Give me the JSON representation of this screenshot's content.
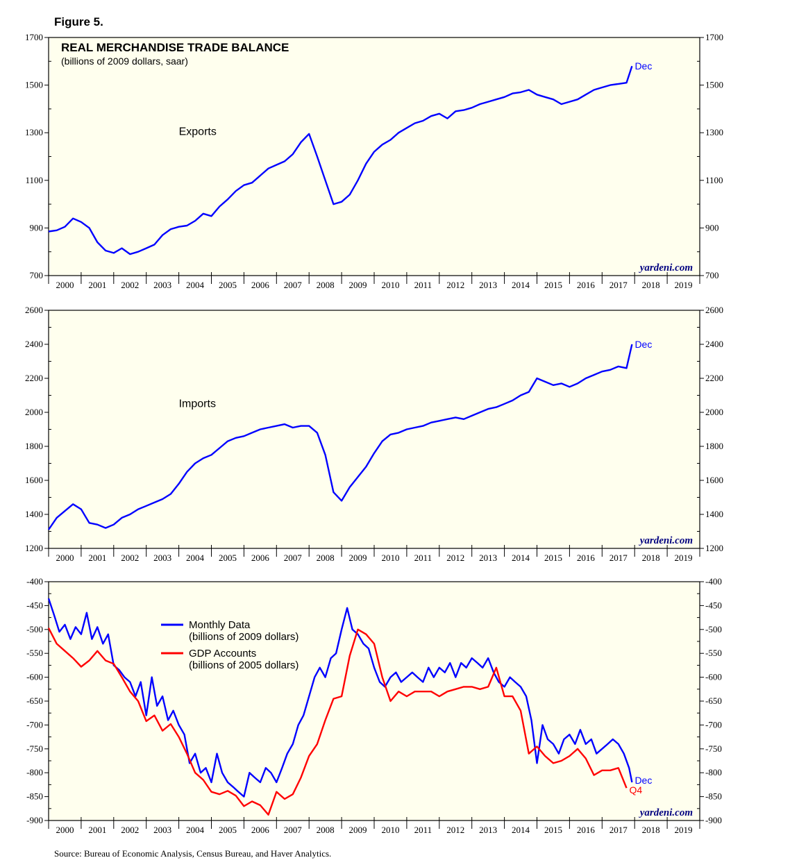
{
  "figure_label": "Figure 5.",
  "source": "Source: Bureau of Economic Analysis, Census Bureau, and Haver Analytics.",
  "colors": {
    "panel_bg": "#ffffee",
    "blue": "#0000ff",
    "red": "#ff0000",
    "watermark": "#000080"
  },
  "chart_data": [
    {
      "type": "line",
      "title": "REAL MERCHANDISE TRADE BALANCE",
      "subtitle": "(billions of 2009 dollars, saar)",
      "watermark": "yardeni.com",
      "ylim": [
        700,
        1700
      ],
      "yticks": [
        700,
        900,
        1100,
        1300,
        1500,
        1700
      ],
      "xlim": [
        2000,
        2020
      ],
      "xtick_labels": [
        "2000",
        "2001",
        "2002",
        "2003",
        "2004",
        "2005",
        "2006",
        "2007",
        "2008",
        "2009",
        "2010",
        "2011",
        "2012",
        "2013",
        "2014",
        "2015",
        "2016",
        "2017",
        "2018",
        "2019"
      ],
      "annotations": [
        {
          "text": "Exports",
          "x": 2004,
          "y": 1290
        }
      ],
      "series": [
        {
          "label": "Exports",
          "color": "#0000ff",
          "end_label": "Dec",
          "x": [
            2000.0,
            2000.25,
            2000.5,
            2000.75,
            2001.0,
            2001.25,
            2001.5,
            2001.75,
            2002.0,
            2002.25,
            2002.5,
            2002.75,
            2003.0,
            2003.25,
            2003.5,
            2003.75,
            2004.0,
            2004.25,
            2004.5,
            2004.75,
            2005.0,
            2005.25,
            2005.5,
            2005.75,
            2006.0,
            2006.25,
            2006.5,
            2006.75,
            2007.0,
            2007.25,
            2007.5,
            2007.75,
            2008.0,
            2008.25,
            2008.5,
            2008.75,
            2009.0,
            2009.25,
            2009.5,
            2009.75,
            2010.0,
            2010.25,
            2010.5,
            2010.75,
            2011.0,
            2011.25,
            2011.5,
            2011.75,
            2012.0,
            2012.25,
            2012.5,
            2012.75,
            2013.0,
            2013.25,
            2013.5,
            2013.75,
            2014.0,
            2014.25,
            2014.5,
            2014.75,
            2015.0,
            2015.25,
            2015.5,
            2015.75,
            2016.0,
            2016.25,
            2016.5,
            2016.75,
            2017.0,
            2017.25,
            2017.5,
            2017.75,
            2017.92
          ],
          "y": [
            885,
            890,
            905,
            940,
            925,
            900,
            840,
            805,
            795,
            815,
            790,
            800,
            815,
            830,
            870,
            895,
            905,
            910,
            930,
            960,
            950,
            990,
            1020,
            1055,
            1080,
            1090,
            1120,
            1150,
            1165,
            1180,
            1210,
            1260,
            1295,
            1200,
            1100,
            1000,
            1010,
            1040,
            1100,
            1170,
            1220,
            1250,
            1270,
            1300,
            1320,
            1340,
            1350,
            1370,
            1380,
            1360,
            1390,
            1395,
            1405,
            1420,
            1430,
            1440,
            1450,
            1465,
            1470,
            1480,
            1460,
            1450,
            1440,
            1420,
            1430,
            1440,
            1460,
            1480,
            1490,
            1500,
            1505,
            1510,
            1580
          ]
        }
      ]
    },
    {
      "type": "line",
      "watermark": "yardeni.com",
      "ylim": [
        1200,
        2600
      ],
      "yticks": [
        1200,
        1400,
        1600,
        1800,
        2000,
        2200,
        2400,
        2600
      ],
      "xlim": [
        2000,
        2020
      ],
      "xtick_labels": [
        "2000",
        "2001",
        "2002",
        "2003",
        "2004",
        "2005",
        "2006",
        "2007",
        "2008",
        "2009",
        "2010",
        "2011",
        "2012",
        "2013",
        "2014",
        "2015",
        "2016",
        "2017",
        "2018",
        "2019"
      ],
      "annotations": [
        {
          "text": "Imports",
          "x": 2004,
          "y": 2030
        }
      ],
      "series": [
        {
          "label": "Imports",
          "color": "#0000ff",
          "end_label": "Dec",
          "x": [
            2000.0,
            2000.25,
            2000.5,
            2000.75,
            2001.0,
            2001.25,
            2001.5,
            2001.75,
            2002.0,
            2002.25,
            2002.5,
            2002.75,
            2003.0,
            2003.25,
            2003.5,
            2003.75,
            2004.0,
            2004.25,
            2004.5,
            2004.75,
            2005.0,
            2005.25,
            2005.5,
            2005.75,
            2006.0,
            2006.25,
            2006.5,
            2006.75,
            2007.0,
            2007.25,
            2007.5,
            2007.75,
            2008.0,
            2008.25,
            2008.5,
            2008.75,
            2009.0,
            2009.25,
            2009.5,
            2009.75,
            2010.0,
            2010.25,
            2010.5,
            2010.75,
            2011.0,
            2011.25,
            2011.5,
            2011.75,
            2012.0,
            2012.25,
            2012.5,
            2012.75,
            2013.0,
            2013.25,
            2013.5,
            2013.75,
            2014.0,
            2014.25,
            2014.5,
            2014.75,
            2015.0,
            2015.25,
            2015.5,
            2015.75,
            2016.0,
            2016.25,
            2016.5,
            2016.75,
            2017.0,
            2017.25,
            2017.5,
            2017.75,
            2017.92
          ],
          "y": [
            1310,
            1380,
            1420,
            1460,
            1430,
            1350,
            1340,
            1320,
            1340,
            1380,
            1400,
            1430,
            1450,
            1470,
            1490,
            1520,
            1580,
            1650,
            1700,
            1730,
            1750,
            1790,
            1830,
            1850,
            1860,
            1880,
            1900,
            1910,
            1920,
            1930,
            1910,
            1920,
            1920,
            1880,
            1750,
            1530,
            1480,
            1560,
            1620,
            1680,
            1760,
            1830,
            1870,
            1880,
            1900,
            1910,
            1920,
            1940,
            1950,
            1960,
            1970,
            1960,
            1980,
            2000,
            2020,
            2030,
            2050,
            2070,
            2100,
            2120,
            2200,
            2180,
            2160,
            2170,
            2150,
            2170,
            2200,
            2220,
            2240,
            2250,
            2270,
            2260,
            2400
          ]
        }
      ]
    },
    {
      "type": "line",
      "watermark": "yardeni.com",
      "ylim": [
        -900,
        -400
      ],
      "yticks": [
        -900,
        -850,
        -800,
        -750,
        -700,
        -650,
        -600,
        -550,
        -500,
        -450,
        -400
      ],
      "xlim": [
        2000,
        2020
      ],
      "xtick_labels": [
        "2000",
        "2001",
        "2002",
        "2003",
        "2004",
        "2005",
        "2006",
        "2007",
        "2008",
        "2009",
        "2010",
        "2011",
        "2012",
        "2013",
        "2014",
        "2015",
        "2016",
        "2017",
        "2018",
        "2019"
      ],
      "legend": {
        "position": "upper-center"
      },
      "series": [
        {
          "label": "Monthly Data",
          "sublabel": "(billions of 2009 dollars)",
          "color": "#0000ff",
          "end_label": "Dec",
          "x": [
            2000.0,
            2000.17,
            2000.33,
            2000.5,
            2000.67,
            2000.83,
            2001.0,
            2001.17,
            2001.33,
            2001.5,
            2001.67,
            2001.83,
            2002.0,
            2002.17,
            2002.33,
            2002.5,
            2002.67,
            2002.83,
            2003.0,
            2003.17,
            2003.33,
            2003.5,
            2003.67,
            2003.83,
            2004.0,
            2004.17,
            2004.33,
            2004.5,
            2004.67,
            2004.83,
            2005.0,
            2005.17,
            2005.33,
            2005.5,
            2005.67,
            2005.83,
            2006.0,
            2006.17,
            2006.33,
            2006.5,
            2006.67,
            2006.83,
            2007.0,
            2007.17,
            2007.33,
            2007.5,
            2007.67,
            2007.83,
            2008.0,
            2008.17,
            2008.33,
            2008.5,
            2008.67,
            2008.83,
            2009.0,
            2009.17,
            2009.33,
            2009.5,
            2009.67,
            2009.83,
            2010.0,
            2010.17,
            2010.33,
            2010.5,
            2010.67,
            2010.83,
            2011.0,
            2011.17,
            2011.33,
            2011.5,
            2011.67,
            2011.83,
            2012.0,
            2012.17,
            2012.33,
            2012.5,
            2012.67,
            2012.83,
            2013.0,
            2013.17,
            2013.33,
            2013.5,
            2013.67,
            2013.83,
            2014.0,
            2014.17,
            2014.33,
            2014.5,
            2014.67,
            2014.83,
            2015.0,
            2015.17,
            2015.33,
            2015.5,
            2015.67,
            2015.83,
            2016.0,
            2016.17,
            2016.33,
            2016.5,
            2016.67,
            2016.83,
            2017.0,
            2017.17,
            2017.33,
            2017.5,
            2017.67,
            2017.83,
            2017.92
          ],
          "y": [
            -435,
            -470,
            -505,
            -490,
            -520,
            -495,
            -510,
            -465,
            -520,
            -495,
            -530,
            -510,
            -575,
            -585,
            -600,
            -610,
            -640,
            -610,
            -680,
            -600,
            -660,
            -640,
            -690,
            -670,
            -700,
            -720,
            -780,
            -760,
            -800,
            -790,
            -820,
            -760,
            -800,
            -820,
            -830,
            -840,
            -850,
            -800,
            -810,
            -820,
            -790,
            -800,
            -820,
            -790,
            -760,
            -740,
            -700,
            -680,
            -640,
            -600,
            -580,
            -600,
            -560,
            -550,
            -500,
            -455,
            -500,
            -510,
            -530,
            -540,
            -580,
            -610,
            -620,
            -600,
            -590,
            -610,
            -600,
            -590,
            -600,
            -610,
            -580,
            -600,
            -580,
            -590,
            -570,
            -600,
            -570,
            -580,
            -560,
            -570,
            -580,
            -560,
            -590,
            -610,
            -620,
            -600,
            -610,
            -620,
            -640,
            -690,
            -780,
            -700,
            -730,
            -740,
            -760,
            -730,
            -720,
            -740,
            -710,
            -740,
            -730,
            -760,
            -750,
            -740,
            -730,
            -740,
            -760,
            -790,
            -820
          ]
        },
        {
          "label": "GDP Accounts",
          "sublabel": "(billions of 2005 dollars)",
          "color": "#ff0000",
          "end_label": "Q4",
          "x": [
            2000.0,
            2000.25,
            2000.5,
            2000.75,
            2001.0,
            2001.25,
            2001.5,
            2001.75,
            2002.0,
            2002.25,
            2002.5,
            2002.75,
            2003.0,
            2003.25,
            2003.5,
            2003.75,
            2004.0,
            2004.25,
            2004.5,
            2004.75,
            2005.0,
            2005.25,
            2005.5,
            2005.75,
            2006.0,
            2006.25,
            2006.5,
            2006.75,
            2007.0,
            2007.25,
            2007.5,
            2007.75,
            2008.0,
            2008.25,
            2008.5,
            2008.75,
            2009.0,
            2009.25,
            2009.5,
            2009.75,
            2010.0,
            2010.25,
            2010.5,
            2010.75,
            2011.0,
            2011.25,
            2011.5,
            2011.75,
            2012.0,
            2012.25,
            2012.5,
            2012.75,
            2013.0,
            2013.25,
            2013.5,
            2013.75,
            2014.0,
            2014.25,
            2014.5,
            2014.75,
            2015.0,
            2015.25,
            2015.5,
            2015.75,
            2016.0,
            2016.25,
            2016.5,
            2016.75,
            2017.0,
            2017.25,
            2017.5,
            2017.75
          ],
          "y": [
            -497,
            -530,
            -545,
            -560,
            -578,
            -565,
            -545,
            -565,
            -572,
            -600,
            -630,
            -650,
            -692,
            -680,
            -712,
            -698,
            -725,
            -760,
            -800,
            -815,
            -840,
            -845,
            -838,
            -848,
            -870,
            -860,
            -868,
            -888,
            -840,
            -855,
            -845,
            -810,
            -765,
            -740,
            -690,
            -645,
            -640,
            -555,
            -500,
            -510,
            -530,
            -600,
            -650,
            -630,
            -640,
            -630,
            -630,
            -630,
            -640,
            -630,
            -625,
            -620,
            -620,
            -625,
            -620,
            -580,
            -640,
            -640,
            -670,
            -760,
            -745,
            -765,
            -780,
            -775,
            -765,
            -750,
            -770,
            -805,
            -795,
            -795,
            -790,
            -832
          ]
        }
      ]
    }
  ]
}
